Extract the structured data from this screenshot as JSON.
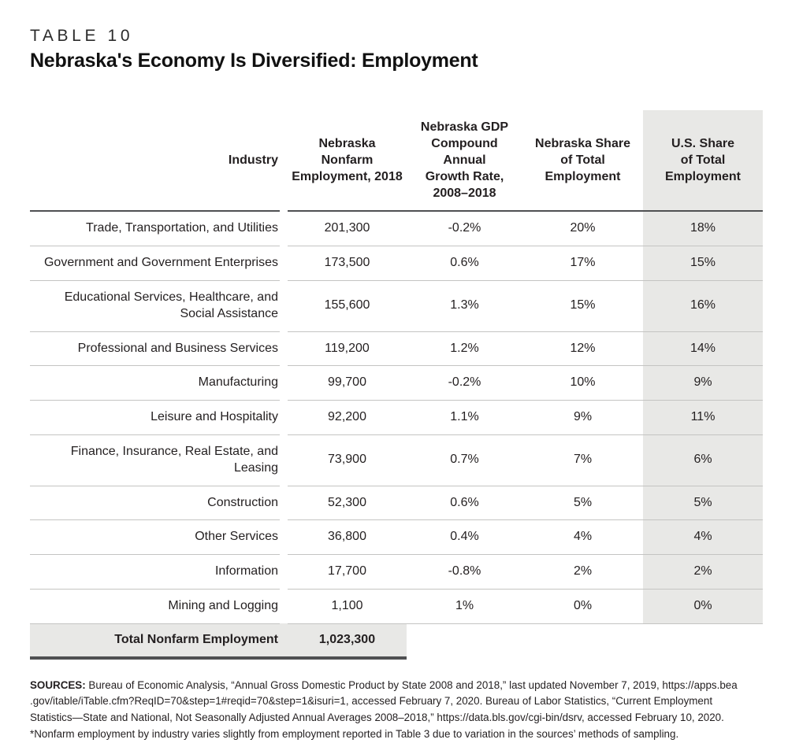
{
  "page": {
    "label": "TABLE 10",
    "title": "Nebraska's Economy Is Diversified: Employment"
  },
  "table": {
    "columns": [
      {
        "key": "industry",
        "label": "Industry"
      },
      {
        "key": "employment",
        "label": "Nebraska\nNonfarm\nEmployment, 2018"
      },
      {
        "key": "growth",
        "label": "Nebraska GDP\nCompound Annual\nGrowth Rate,\n2008–2018"
      },
      {
        "key": "ne_share",
        "label": "Nebraska Share\nof Total\nEmployment"
      },
      {
        "key": "us_share",
        "label": "U.S. Share\nof Total\nEmployment"
      }
    ],
    "rows": [
      {
        "industry": "Trade, Transportation, and Utilities",
        "employment": "201,300",
        "growth": "-0.2%",
        "ne_share": "20%",
        "us_share": "18%"
      },
      {
        "industry": "Government and Government Enterprises",
        "employment": "173,500",
        "growth": "0.6%",
        "ne_share": "17%",
        "us_share": "15%"
      },
      {
        "industry": "Educational Services, Healthcare, and Social Assistance",
        "employment": "155,600",
        "growth": "1.3%",
        "ne_share": "15%",
        "us_share": "16%"
      },
      {
        "industry": "Professional and Business Services",
        "employment": "119,200",
        "growth": "1.2%",
        "ne_share": "12%",
        "us_share": "14%"
      },
      {
        "industry": "Manufacturing",
        "employment": "99,700",
        "growth": "-0.2%",
        "ne_share": "10%",
        "us_share": "9%"
      },
      {
        "industry": "Leisure and Hospitality",
        "employment": "92,200",
        "growth": "1.1%",
        "ne_share": "9%",
        "us_share": "11%"
      },
      {
        "industry": "Finance, Insurance, Real Estate, and Leasing",
        "employment": "73,900",
        "growth": "0.7%",
        "ne_share": "7%",
        "us_share": "6%"
      },
      {
        "industry": "Construction",
        "employment": "52,300",
        "growth": "0.6%",
        "ne_share": "5%",
        "us_share": "5%"
      },
      {
        "industry": "Other Services",
        "employment": "36,800",
        "growth": "0.4%",
        "ne_share": "4%",
        "us_share": "4%"
      },
      {
        "industry": "Information",
        "employment": "17,700",
        "growth": "-0.8%",
        "ne_share": "2%",
        "us_share": "2%"
      },
      {
        "industry": "Mining and Logging",
        "employment": "1,100",
        "growth": "1%",
        "ne_share": "0%",
        "us_share": "0%"
      }
    ],
    "total": {
      "label": "Total Nonfarm Employment",
      "employment": "1,023,300"
    }
  },
  "footnote": {
    "sources_label": "SOURCES:",
    "line1": "Bureau of Economic Analysis, “Annual Gross Domestic Product by State 2008 and 2018,” last updated November 7, 2019, https://apps.bea",
    "line2": ".gov/itable/iTable.cfm?ReqID=70&step=1#reqid=70&step=1&isuri=1, accessed February 7, 2020. Bureau of Labor Statistics, “Current Employment",
    "line3": "Statistics—State and National, Not Seasonally Adjusted Annual Averages 2008–2018,” https://data.bls.gov/cgi-bin/dsrv, accessed February 10, 2020.",
    "note": "*Nonfarm employment by industry varies slightly from employment reported in Table 3 due to variation in the sources’ methods of sampling."
  },
  "colors": {
    "shade": "#e8e8e6",
    "rule_light": "#c4c4c2",
    "rule_dark": "#4f5052",
    "text": "#231f20"
  }
}
